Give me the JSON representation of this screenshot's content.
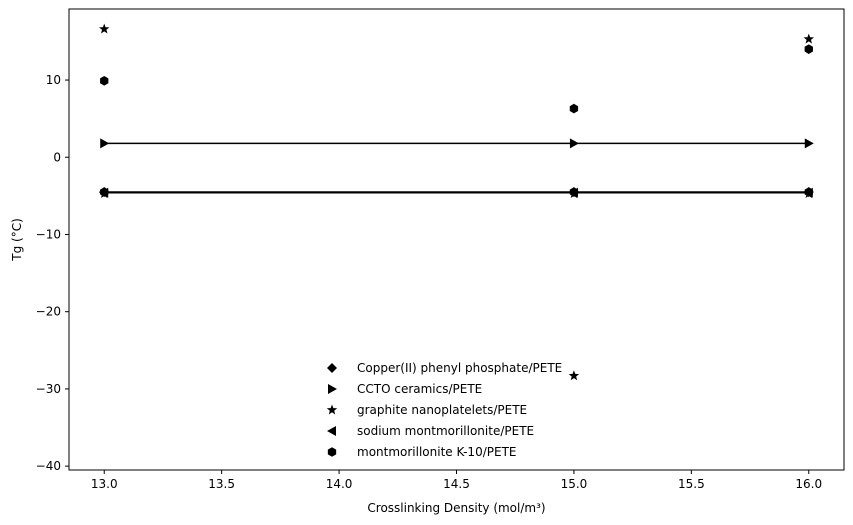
{
  "chart_data": {
    "type": "scatter",
    "title": "",
    "xlabel": "Crosslinking Density (mol/m³)",
    "ylabel": "Tg (°C)",
    "xlim": [
      12.85,
      16.15
    ],
    "ylim": [
      -40.5,
      19.2
    ],
    "xticks": [
      13.0,
      13.5,
      14.0,
      14.5,
      15.0,
      15.5,
      16.0
    ],
    "xtick_labels": [
      "13.0",
      "13.5",
      "14.0",
      "14.5",
      "15.0",
      "15.5",
      "16.0"
    ],
    "yticks": [
      -40,
      -30,
      -20,
      -10,
      0,
      10
    ],
    "ytick_labels": [
      "−40",
      "−30",
      "−20",
      "−10",
      "0",
      "10"
    ],
    "grid": false,
    "legend_position": "lower-center",
    "series": [
      {
        "name": "Copper(II) phenyl phosphate/PETE",
        "marker": "diamond",
        "x": [
          13,
          15,
          16
        ],
        "y": [
          -4.5,
          -4.5,
          -4.5
        ],
        "line": true
      },
      {
        "name": "CCTO ceramics/PETE",
        "marker": "triangle-right",
        "x": [
          13,
          15,
          16
        ],
        "y": [
          1.8,
          1.8,
          1.8
        ],
        "line": true
      },
      {
        "name": "graphite nanoplatelets/PETE",
        "marker": "star",
        "x": [
          13,
          15,
          16,
          13,
          15,
          16
        ],
        "y": [
          16.6,
          -28.3,
          15.3,
          -4.7,
          -4.7,
          -4.7
        ],
        "line": false
      },
      {
        "name": "sodium montmorillonite/PETE",
        "marker": "triangle-left",
        "x": [
          13,
          15,
          16
        ],
        "y": [
          -4.6,
          -4.6,
          -4.6
        ],
        "line": true
      },
      {
        "name": "montmorillonite K-10/PETE",
        "marker": "hexagon",
        "x": [
          13,
          15,
          16,
          13,
          15,
          16
        ],
        "y": [
          9.9,
          6.3,
          14.0,
          -4.5,
          -4.5,
          -4.5
        ],
        "line": false
      }
    ],
    "colors": {
      "marker": "#000000",
      "axes": "#000000",
      "background": "#ffffff"
    }
  }
}
